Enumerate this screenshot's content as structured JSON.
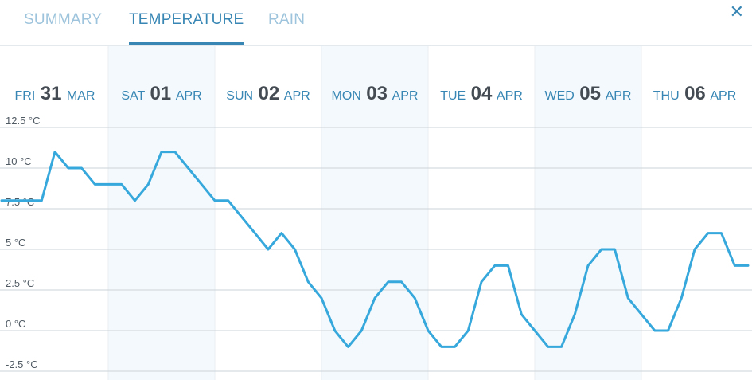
{
  "tabs": [
    {
      "label": "SUMMARY",
      "active": false
    },
    {
      "label": "TEMPERATURE",
      "active": true
    },
    {
      "label": "RAIN",
      "active": false
    }
  ],
  "close_icon": "close-icon",
  "colors": {
    "accent": "#3786b4",
    "tab_inactive": "#9dc4dc",
    "line": "#37a8dc",
    "shaded_band": "#f3f9fc",
    "grid": "#cdd3d8"
  },
  "days": [
    {
      "dow": "FRI",
      "day": "31",
      "mon": "MAR",
      "shaded": false
    },
    {
      "dow": "SAT",
      "day": "01",
      "mon": "APR",
      "shaded": true
    },
    {
      "dow": "SUN",
      "day": "02",
      "mon": "APR",
      "shaded": false
    },
    {
      "dow": "MON",
      "day": "03",
      "mon": "APR",
      "shaded": true
    },
    {
      "dow": "TUE",
      "day": "04",
      "mon": "APR",
      "shaded": false
    },
    {
      "dow": "WED",
      "day": "05",
      "mon": "APR",
      "shaded": true
    },
    {
      "dow": "THU",
      "day": "06",
      "mon": "APR",
      "shaded": false
    }
  ],
  "chart_data": {
    "type": "line",
    "ylabel": "",
    "xlabel": "",
    "ylim": [
      -2.5,
      12.5
    ],
    "y_ticks": [
      -2.5,
      0,
      2.5,
      5,
      7.5,
      10,
      12.5
    ],
    "y_tick_labels": [
      "-2.5 °C",
      "0 °C",
      "2.5 °C",
      "5 °C",
      "7.5 °C",
      "10 °C",
      "12.5 °C"
    ],
    "grid": true,
    "x_unit": "hours",
    "xlim": [
      0,
      168
    ],
    "series": [
      {
        "x": [
          0,
          9,
          12,
          15,
          18,
          21,
          24,
          27,
          30,
          33,
          36,
          39,
          42,
          45,
          48,
          51,
          54,
          57,
          60,
          63,
          66,
          69,
          72,
          75,
          78,
          81,
          84,
          87,
          90,
          93,
          96,
          99,
          102,
          105,
          108,
          111,
          114,
          117,
          120,
          123,
          126,
          129,
          132,
          135,
          138,
          141,
          144,
          147,
          150,
          153,
          156,
          159,
          162,
          165,
          168
        ],
        "values": [
          8,
          8,
          11,
          10,
          10,
          9,
          9,
          9,
          8,
          9,
          11,
          11,
          10,
          9,
          8,
          8,
          7,
          6,
          5,
          6,
          5,
          3,
          2,
          0,
          -1,
          0,
          2,
          3,
          3,
          2,
          0,
          -1,
          -1,
          0,
          3,
          4,
          4,
          1,
          0,
          -1,
          -1,
          1,
          4,
          5,
          5,
          2,
          1,
          0,
          0,
          2,
          5,
          6,
          6,
          4,
          4
        ]
      }
    ]
  }
}
